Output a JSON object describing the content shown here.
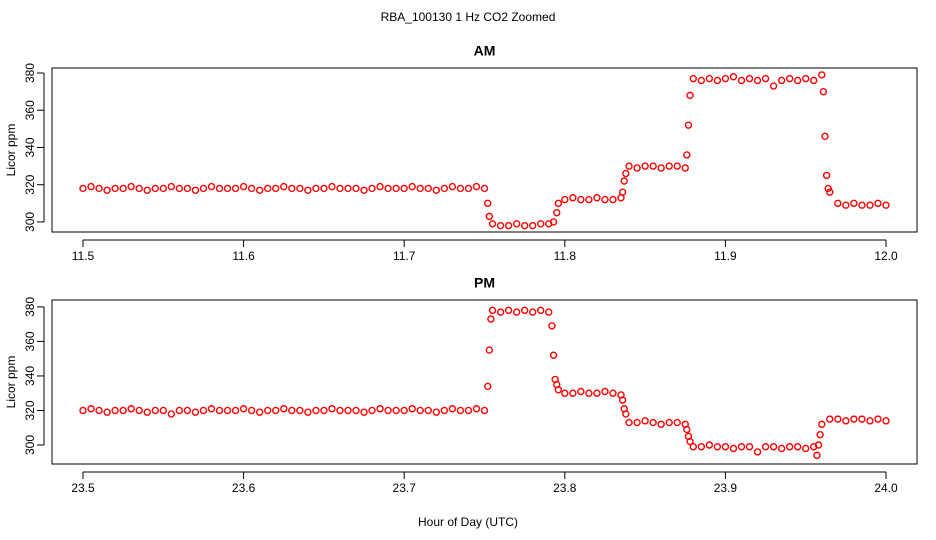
{
  "title": "RBA_100130  1 Hz CO2 Zoomed",
  "xlabel": "Hour of Day (UTC)",
  "chart_data": [
    {
      "type": "scatter",
      "title": "AM",
      "ylabel": "Licor ppm",
      "color": "#ff0000",
      "xlim": [
        11.4807,
        12.0193
      ],
      "ylim": [
        294.6,
        382.7
      ],
      "xticks": [
        11.5,
        11.6,
        11.7,
        11.8,
        11.9,
        {
          "value": 12,
          "label": "12.0"
        }
      ],
      "yticks": [
        300,
        320,
        340,
        360,
        380
      ],
      "x": [
        11.5,
        11.505,
        11.51,
        11.515,
        11.52,
        11.525,
        11.53,
        11.535,
        11.54,
        11.545,
        11.55,
        11.555,
        11.56,
        11.565,
        11.57,
        11.575,
        11.58,
        11.585,
        11.59,
        11.595,
        11.6,
        11.605,
        11.61,
        11.615,
        11.62,
        11.625,
        11.63,
        11.635,
        11.64,
        11.645,
        11.65,
        11.655,
        11.66,
        11.665,
        11.67,
        11.675,
        11.68,
        11.685,
        11.69,
        11.695,
        11.7,
        11.705,
        11.71,
        11.715,
        11.72,
        11.725,
        11.73,
        11.735,
        11.74,
        11.745,
        11.75,
        11.752,
        11.753,
        11.755,
        11.76,
        11.765,
        11.77,
        11.775,
        11.78,
        11.785,
        11.79,
        11.793,
        11.795,
        11.796,
        11.8,
        11.805,
        11.81,
        11.815,
        11.82,
        11.825,
        11.83,
        11.835,
        11.836,
        11.837,
        11.838,
        11.84,
        11.845,
        11.85,
        11.855,
        11.86,
        11.865,
        11.87,
        11.875,
        11.876,
        11.877,
        11.878,
        11.88,
        11.885,
        11.89,
        11.895,
        11.9,
        11.905,
        11.91,
        11.915,
        11.92,
        11.925,
        11.93,
        11.935,
        11.94,
        11.945,
        11.95,
        11.955,
        11.96,
        11.961,
        11.962,
        11.963,
        11.964,
        11.965,
        11.97,
        11.975,
        11.98,
        11.985,
        11.99,
        11.995,
        12.0
      ],
      "values": [
        318,
        319,
        318,
        317,
        318,
        318,
        319,
        318,
        317,
        318,
        318,
        319,
        318,
        318,
        317,
        318,
        319,
        318,
        318,
        318,
        319,
        318,
        317,
        318,
        318,
        319,
        318,
        318,
        317,
        318,
        318,
        319,
        318,
        318,
        318,
        317,
        318,
        319,
        318,
        318,
        318,
        319,
        318,
        318,
        317,
        318,
        319,
        318,
        318,
        319,
        318,
        310,
        303,
        299,
        298,
        298,
        299,
        298,
        298,
        299,
        299,
        300,
        305,
        310,
        312,
        313,
        312,
        312,
        313,
        312,
        312,
        313,
        316,
        322,
        326,
        330,
        329,
        330,
        330,
        329,
        330,
        330,
        329,
        336,
        352,
        368,
        377,
        376,
        377,
        376,
        377,
        378,
        376,
        377,
        376,
        377,
        373,
        376,
        377,
        376,
        377,
        376,
        379,
        370,
        346,
        325,
        318,
        316,
        310,
        309,
        310,
        309,
        309,
        310,
        309
      ]
    },
    {
      "type": "scatter",
      "title": "PM",
      "ylabel": "Licor ppm",
      "color": "#ff0000",
      "xlim": [
        23.4807,
        24.0193
      ],
      "ylim": [
        289,
        384
      ],
      "xticks": [
        23.5,
        23.6,
        23.7,
        23.8,
        23.9,
        {
          "value": 24,
          "label": "24.0"
        }
      ],
      "yticks": [
        300,
        320,
        340,
        360,
        380
      ],
      "x": [
        23.5,
        23.505,
        23.51,
        23.515,
        23.52,
        23.525,
        23.53,
        23.535,
        23.54,
        23.545,
        23.55,
        23.555,
        23.56,
        23.565,
        23.57,
        23.575,
        23.58,
        23.585,
        23.59,
        23.595,
        23.6,
        23.605,
        23.61,
        23.615,
        23.62,
        23.625,
        23.63,
        23.635,
        23.64,
        23.645,
        23.65,
        23.655,
        23.66,
        23.665,
        23.67,
        23.675,
        23.68,
        23.685,
        23.69,
        23.695,
        23.7,
        23.705,
        23.71,
        23.715,
        23.72,
        23.725,
        23.73,
        23.735,
        23.74,
        23.745,
        23.75,
        23.752,
        23.753,
        23.754,
        23.755,
        23.76,
        23.765,
        23.77,
        23.775,
        23.78,
        23.785,
        23.79,
        23.792,
        23.793,
        23.794,
        23.795,
        23.796,
        23.8,
        23.805,
        23.81,
        23.815,
        23.82,
        23.825,
        23.83,
        23.835,
        23.836,
        23.837,
        23.838,
        23.84,
        23.845,
        23.85,
        23.855,
        23.86,
        23.865,
        23.87,
        23.875,
        23.876,
        23.877,
        23.878,
        23.88,
        23.885,
        23.89,
        23.895,
        23.9,
        23.905,
        23.91,
        23.915,
        23.92,
        23.925,
        23.93,
        23.935,
        23.94,
        23.945,
        23.95,
        23.955,
        23.957,
        23.958,
        23.959,
        23.96,
        23.965,
        23.97,
        23.975,
        23.98,
        23.985,
        23.99,
        23.995,
        24.0
      ],
      "values": [
        320,
        321,
        320,
        319,
        320,
        320,
        321,
        320,
        319,
        320,
        320,
        318,
        320,
        320,
        319,
        320,
        321,
        320,
        320,
        320,
        321,
        320,
        319,
        320,
        320,
        321,
        320,
        320,
        319,
        320,
        320,
        321,
        320,
        320,
        320,
        319,
        320,
        321,
        320,
        320,
        320,
        321,
        320,
        320,
        319,
        320,
        321,
        320,
        320,
        321,
        320,
        334,
        355,
        373,
        378,
        377,
        378,
        377,
        378,
        377,
        378,
        377,
        369,
        352,
        338,
        335,
        332,
        330,
        330,
        331,
        330,
        330,
        331,
        330,
        329,
        326,
        321,
        318,
        313,
        313,
        314,
        313,
        312,
        313,
        313,
        312,
        309,
        305,
        302,
        299,
        299,
        300,
        299,
        299,
        298,
        299,
        299,
        296,
        299,
        299,
        298,
        299,
        299,
        298,
        299,
        294,
        300,
        306,
        312,
        315,
        315,
        314,
        315,
        315,
        314,
        315,
        314
      ]
    }
  ]
}
